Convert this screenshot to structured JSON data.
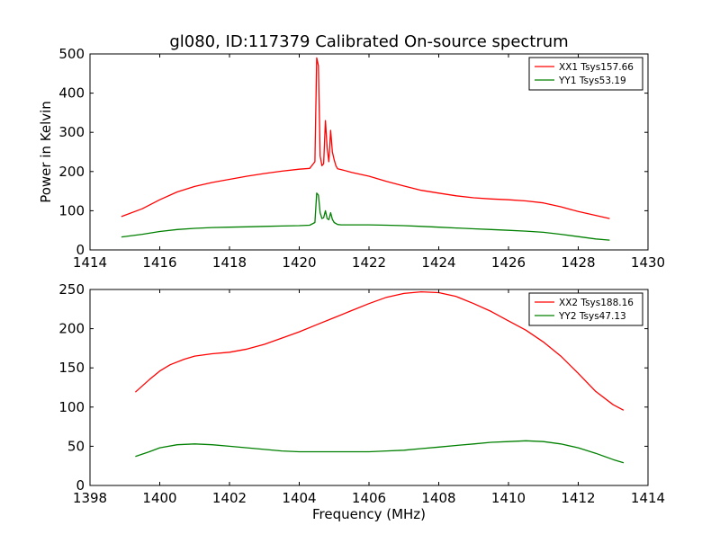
{
  "chart_data": [
    {
      "type": "line",
      "title": "gl080, ID:117379 Calibrated On-source spectrum",
      "xlabel": "",
      "ylabel": "Power in Kelvin",
      "xlim": [
        1414,
        1430
      ],
      "ylim": [
        0,
        500
      ],
      "xticks": [
        1414,
        1416,
        1418,
        1420,
        1422,
        1424,
        1426,
        1428,
        1430
      ],
      "yticks": [
        0,
        100,
        200,
        300,
        400,
        500
      ],
      "legend_position": "top-right",
      "series": [
        {
          "name": "XX1 Tsys157.66",
          "color": "#ff0000",
          "x": [
            1414.9,
            1415.5,
            1416,
            1416.5,
            1417,
            1417.5,
            1418,
            1418.5,
            1419,
            1419.5,
            1420,
            1420.3,
            1420.45,
            1420.5,
            1420.55,
            1420.6,
            1420.65,
            1420.7,
            1420.75,
            1420.8,
            1420.85,
            1420.9,
            1420.95,
            1421,
            1421.05,
            1421.1,
            1421.2,
            1421.5,
            1422,
            1422.5,
            1423,
            1423.5,
            1424,
            1424.5,
            1425,
            1425.5,
            1426,
            1426.5,
            1427,
            1427.5,
            1428,
            1428.5,
            1428.9
          ],
          "values": [
            85,
            105,
            128,
            148,
            162,
            172,
            180,
            188,
            195,
            201,
            206,
            208,
            225,
            490,
            470,
            240,
            215,
            220,
            330,
            260,
            225,
            305,
            250,
            230,
            215,
            207,
            205,
            198,
            188,
            175,
            163,
            152,
            145,
            138,
            133,
            130,
            128,
            125,
            120,
            110,
            98,
            88,
            80
          ]
        },
        {
          "name": "YY1 Tsys53.19",
          "color": "#008000",
          "x": [
            1414.9,
            1415.5,
            1416,
            1416.5,
            1417,
            1417.5,
            1418,
            1418.5,
            1419,
            1419.5,
            1420,
            1420.3,
            1420.45,
            1420.5,
            1420.55,
            1420.6,
            1420.65,
            1420.7,
            1420.75,
            1420.8,
            1420.85,
            1420.9,
            1420.95,
            1421,
            1421.1,
            1421.2,
            1421.5,
            1422,
            1422.5,
            1423,
            1423.5,
            1424,
            1424.5,
            1425,
            1425.5,
            1426,
            1426.5,
            1427,
            1427.5,
            1428,
            1428.5,
            1428.9
          ],
          "values": [
            33,
            40,
            47,
            52,
            55,
            57,
            58,
            59,
            60,
            61,
            62,
            63,
            70,
            145,
            140,
            95,
            80,
            82,
            100,
            80,
            77,
            95,
            78,
            70,
            65,
            64,
            64,
            64,
            63,
            62,
            60,
            58,
            56,
            54,
            52,
            50,
            48,
            45,
            40,
            34,
            28,
            25
          ]
        }
      ]
    },
    {
      "type": "line",
      "title": "",
      "xlabel": "Frequency (MHz)",
      "ylabel": "",
      "xlim": [
        1398,
        1414
      ],
      "ylim": [
        0,
        250
      ],
      "xticks": [
        1398,
        1400,
        1402,
        1404,
        1406,
        1408,
        1410,
        1412,
        1414
      ],
      "yticks": [
        0,
        50,
        100,
        150,
        200,
        250
      ],
      "legend_position": "top-right",
      "series": [
        {
          "name": "XX2 Tsys188.16",
          "color": "#ff0000",
          "x": [
            1399.3,
            1399.7,
            1400,
            1400.3,
            1400.7,
            1401,
            1401.5,
            1402,
            1402.5,
            1403,
            1403.5,
            1404,
            1404.5,
            1405,
            1405.5,
            1406,
            1406.5,
            1407,
            1407.5,
            1408,
            1408.5,
            1409,
            1409.5,
            1410,
            1410.5,
            1411,
            1411.5,
            1412,
            1412.5,
            1413,
            1413.3
          ],
          "values": [
            119,
            135,
            146,
            154,
            161,
            165,
            168,
            170,
            174,
            180,
            188,
            196,
            205,
            214,
            223,
            232,
            240,
            245,
            247,
            246,
            241,
            232,
            222,
            210,
            198,
            183,
            165,
            143,
            120,
            103,
            96
          ]
        },
        {
          "name": "YY2 Tsys47.13",
          "color": "#008000",
          "x": [
            1399.3,
            1399.7,
            1400,
            1400.5,
            1401,
            1401.5,
            1402,
            1402.5,
            1403,
            1403.5,
            1404,
            1404.5,
            1405,
            1405.5,
            1406,
            1406.5,
            1407,
            1407.5,
            1408,
            1408.5,
            1409,
            1409.5,
            1410,
            1410.5,
            1411,
            1411.5,
            1412,
            1412.5,
            1413,
            1413.3
          ],
          "values": [
            37,
            43,
            48,
            52,
            53,
            52,
            50,
            48,
            46,
            44,
            43,
            43,
            43,
            43,
            43,
            44,
            45,
            47,
            49,
            51,
            53,
            55,
            56,
            57,
            56,
            53,
            48,
            41,
            33,
            29
          ]
        }
      ]
    }
  ]
}
